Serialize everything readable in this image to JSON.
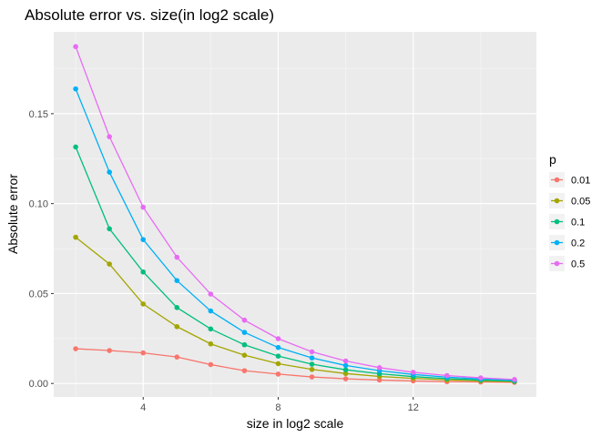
{
  "chart_data": {
    "type": "line",
    "title": "Absolute error vs. size(in log2 scale)",
    "xlabel": "size in log2 scale",
    "ylabel": "Absolute error",
    "xlim": [
      1.35,
      15.65
    ],
    "ylim": [
      -0.0075,
      0.1955
    ],
    "x_ticks": [
      4,
      8,
      12
    ],
    "x_tick_labels": [
      "4",
      "8",
      "12"
    ],
    "y_ticks": [
      0.0,
      0.05,
      0.1,
      0.15
    ],
    "y_tick_labels": [
      "0.00",
      "0.05",
      "0.10",
      "0.15"
    ],
    "grid": true,
    "legend": {
      "title": "p",
      "position": "right"
    },
    "x": [
      2,
      3,
      4,
      5,
      6,
      7,
      8,
      9,
      10,
      11,
      12,
      13,
      14,
      15
    ],
    "series": [
      {
        "name": "0.01",
        "color": "#F8766D",
        "values": [
          0.0193,
          0.0183,
          0.017,
          0.0147,
          0.0105,
          0.0071,
          0.0052,
          0.0036,
          0.0026,
          0.0019,
          0.0014,
          0.001,
          0.0008,
          0.0006
        ]
      },
      {
        "name": "0.05",
        "color": "#A3A500",
        "values": [
          0.0813,
          0.0664,
          0.0442,
          0.0316,
          0.022,
          0.0157,
          0.011,
          0.0078,
          0.0055,
          0.0039,
          0.0028,
          0.002,
          0.0014,
          0.001
        ]
      },
      {
        "name": "0.1",
        "color": "#00BF7D",
        "values": [
          0.1315,
          0.086,
          0.062,
          0.0422,
          0.0303,
          0.0215,
          0.0152,
          0.0107,
          0.0076,
          0.0054,
          0.0038,
          0.0027,
          0.0019,
          0.0013
        ]
      },
      {
        "name": "0.2",
        "color": "#00B0F6",
        "values": [
          0.1638,
          0.1175,
          0.08,
          0.0572,
          0.0403,
          0.0284,
          0.02,
          0.0142,
          0.01,
          0.0071,
          0.005,
          0.0035,
          0.0025,
          0.0018
        ]
      },
      {
        "name": "0.5",
        "color": "#E76BF3",
        "values": [
          0.1873,
          0.1372,
          0.098,
          0.0702,
          0.0497,
          0.0352,
          0.0249,
          0.0176,
          0.0125,
          0.0088,
          0.0062,
          0.0044,
          0.0031,
          0.0022
        ]
      }
    ]
  }
}
